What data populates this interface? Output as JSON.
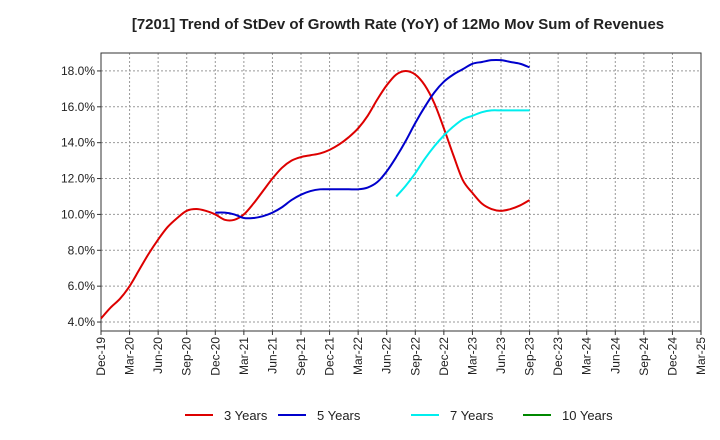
{
  "chart_data": {
    "type": "line",
    "title": "[7201]  Trend of StDev of Growth Rate (YoY) of 12Mo Mov Sum of Revenues",
    "xlabel": "",
    "ylabel": "",
    "ylim": [
      3.5,
      19.0
    ],
    "y_ticks": [
      "4.0%",
      "6.0%",
      "8.0%",
      "10.0%",
      "12.0%",
      "14.0%",
      "16.0%",
      "18.0%"
    ],
    "y_tick_values": [
      4,
      6,
      8,
      10,
      12,
      14,
      16,
      18
    ],
    "x_ticks": [
      "Dec-19",
      "Mar-20",
      "Jun-20",
      "Sep-20",
      "Dec-20",
      "Mar-21",
      "Jun-21",
      "Sep-21",
      "Dec-21",
      "Mar-22",
      "Jun-22",
      "Sep-22",
      "Dec-22",
      "Mar-23",
      "Jun-23",
      "Sep-23",
      "Dec-23",
      "Mar-24",
      "Jun-24",
      "Sep-24",
      "Dec-24",
      "Mar-25"
    ],
    "grid": true,
    "legend_position": "bottom",
    "series": [
      {
        "name": "3 Years",
        "color": "#dd0000",
        "values": [
          4.2,
          4.8,
          5.3,
          6.0,
          6.9,
          7.8,
          8.6,
          9.3,
          9.8,
          10.2,
          10.3,
          10.2,
          10.0,
          9.7,
          9.7,
          10.0,
          10.6,
          11.3,
          12.0,
          12.6,
          13.0,
          13.2,
          13.3,
          13.4,
          13.6,
          13.9,
          14.3,
          14.8,
          15.5,
          16.4,
          17.2,
          17.8,
          18.0,
          17.8,
          17.2,
          16.2,
          14.8,
          13.3,
          11.9,
          11.2,
          10.6,
          10.3,
          10.2,
          10.3,
          10.5,
          10.8
        ],
        "start_index": 0
      },
      {
        "name": "5 Years",
        "color": "#0000cc",
        "values": [
          10.1,
          10.1,
          10.0,
          9.8,
          9.8,
          9.9,
          10.1,
          10.4,
          10.8,
          11.1,
          11.3,
          11.4,
          11.4,
          11.4,
          11.4,
          11.4,
          11.5,
          11.8,
          12.4,
          13.2,
          14.1,
          15.1,
          16.0,
          16.8,
          17.4,
          17.8,
          18.1,
          18.4,
          18.5,
          18.6,
          18.6,
          18.5,
          18.4,
          18.2
        ],
        "start_index": 12
      },
      {
        "name": "7 Years",
        "color": "#00eeee",
        "values": [
          11.0,
          11.6,
          12.3,
          13.1,
          13.8,
          14.4,
          14.9,
          15.3,
          15.5,
          15.7,
          15.8,
          15.8,
          15.8,
          15.8,
          15.8
        ],
        "start_index": 31
      },
      {
        "name": "10 Years",
        "color": "#008800",
        "values": [],
        "start_index": 0
      }
    ]
  }
}
